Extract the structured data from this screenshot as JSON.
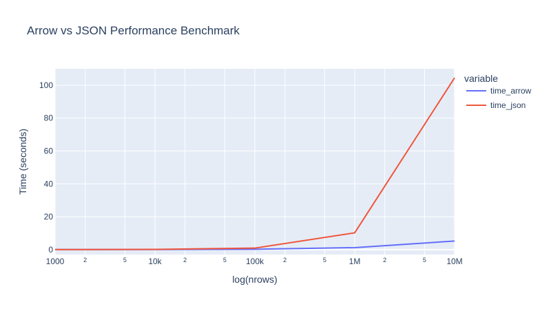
{
  "chart_data": {
    "type": "line",
    "title": "Arrow vs JSON Performance Benchmark",
    "xlabel": "log(nrows)",
    "ylabel": "Time (seconds)",
    "x_scale": "log",
    "xlim": [
      1000,
      10000000
    ],
    "ylim": [
      -3,
      110
    ],
    "x_major_ticks": [
      {
        "value": 1000,
        "label": "1000"
      },
      {
        "value": 10000,
        "label": "10k"
      },
      {
        "value": 100000,
        "label": "100k"
      },
      {
        "value": 1000000,
        "label": "1M"
      },
      {
        "value": 10000000,
        "label": "10M"
      }
    ],
    "x_minor_ticks": [
      {
        "value": 2000,
        "label": "2"
      },
      {
        "value": 5000,
        "label": "5"
      },
      {
        "value": 20000,
        "label": "2"
      },
      {
        "value": 50000,
        "label": "5"
      },
      {
        "value": 200000,
        "label": "2"
      },
      {
        "value": 500000,
        "label": "5"
      },
      {
        "value": 2000000,
        "label": "2"
      },
      {
        "value": 5000000,
        "label": "5"
      }
    ],
    "y_ticks": [
      {
        "value": 0,
        "label": "0"
      },
      {
        "value": 20,
        "label": "20"
      },
      {
        "value": 40,
        "label": "40"
      },
      {
        "value": 60,
        "label": "60"
      },
      {
        "value": 80,
        "label": "80"
      },
      {
        "value": 100,
        "label": "100"
      }
    ],
    "grid": true,
    "legend": {
      "title": "variable",
      "placement": "right"
    },
    "x": [
      1000,
      10000,
      100000,
      1000000,
      10000000
    ],
    "series": [
      {
        "name": "time_arrow",
        "color": "#636efa",
        "values": [
          0.01,
          0.05,
          0.2,
          1.2,
          5.2
        ]
      },
      {
        "name": "time_json",
        "color": "#ef553b",
        "values": [
          0.03,
          0.12,
          0.9,
          10.2,
          104.5
        ]
      }
    ],
    "colors": {
      "plot_bg": "#e5ecf6",
      "grid": "#ffffff",
      "text": "#2a3f5f"
    }
  }
}
